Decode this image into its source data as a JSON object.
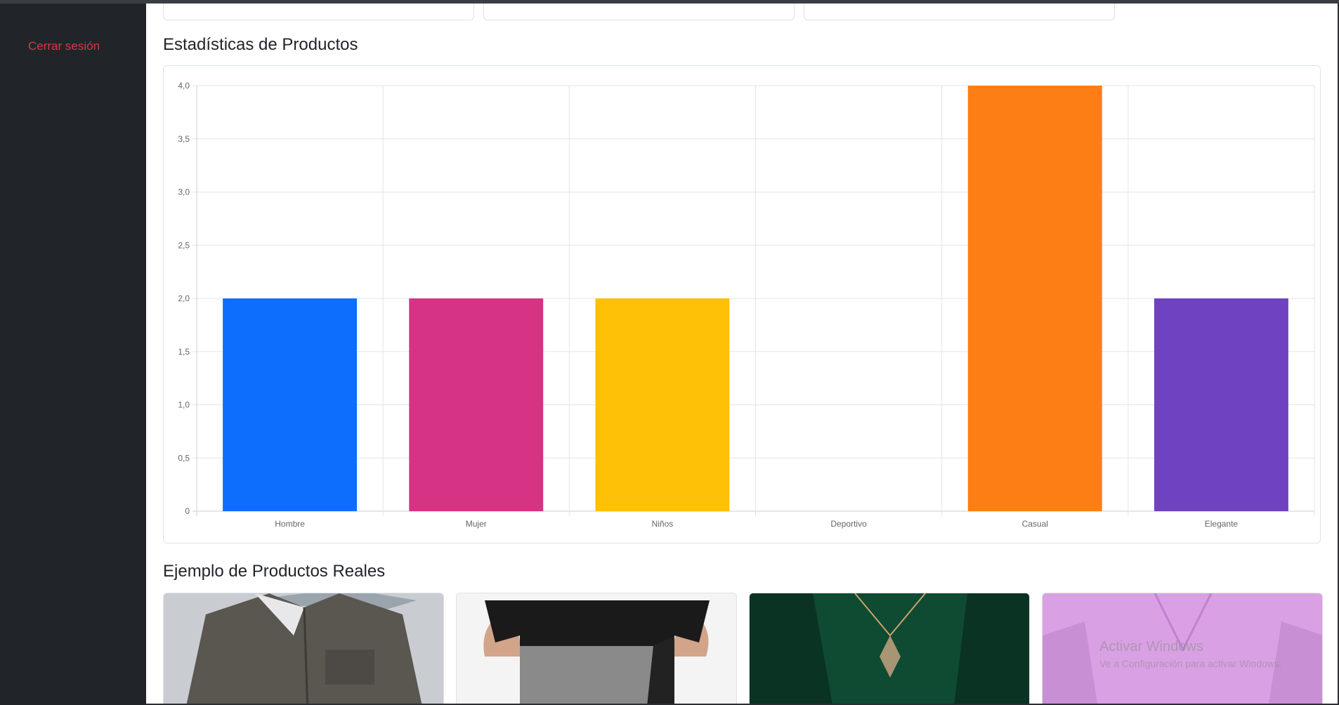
{
  "sidebar": {
    "logout_label": "Cerrar sesión"
  },
  "sections": {
    "stats_title": "Estadísticas de Productos",
    "products_title": "Ejemplo de Productos Reales"
  },
  "chart_data": {
    "type": "bar",
    "categories": [
      "Hombre",
      "Mujer",
      "Niños",
      "Deportivo",
      "Casual",
      "Elegante"
    ],
    "values": [
      2,
      2,
      2,
      0,
      4,
      2
    ],
    "colors": [
      "#0d6efd",
      "#d63384",
      "#ffc107",
      "#20c997",
      "#fd7e14",
      "#6f42c1"
    ],
    "ylim": [
      0,
      4
    ],
    "yticks": [
      "0",
      "0,5",
      "1,0",
      "1,5",
      "2,0",
      "2,5",
      "3,0",
      "3,5",
      "4,0"
    ],
    "grid": true,
    "title": "",
    "xlabel": "",
    "ylabel": ""
  },
  "products": [
    {
      "name": "product-image-gray-shirt",
      "icon": "shirt-image",
      "color": "#5a5650"
    },
    {
      "name": "product-image-black-tshirt",
      "icon": "tshirt-image",
      "color": "#1a1a1a"
    },
    {
      "name": "product-image-green-blouse",
      "icon": "blouse-image",
      "color": "#0f4a32"
    },
    {
      "name": "product-image-pink-blouse",
      "icon": "blouse-image",
      "color": "#d9a1e3"
    }
  ],
  "watermark": {
    "line1": "Activar Windows",
    "line2": "Ve a Configuración para activar Windows."
  }
}
